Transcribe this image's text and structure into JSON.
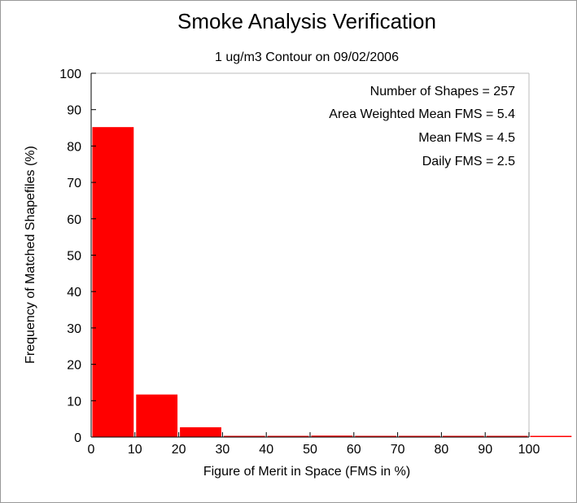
{
  "chart_data": {
    "type": "bar",
    "title": "Smoke Analysis Verification",
    "subtitle": "1 ug/m3 Contour on 09/02/2006",
    "xlabel": "Figure of Merit in Space (FMS in %)",
    "ylabel": "Frequency of Matched Shapefiles (%)",
    "xlim": [
      0,
      110
    ],
    "ylim": [
      0,
      100
    ],
    "xticks": [
      "0",
      "10",
      "20",
      "30",
      "40",
      "50",
      "60",
      "70",
      "80",
      "90",
      "100"
    ],
    "yticks": [
      "0",
      "10",
      "20",
      "30",
      "40",
      "50",
      "60",
      "70",
      "80",
      "90",
      "100"
    ],
    "bins": [
      {
        "x0": 0,
        "x1": 10,
        "value": 85.2
      },
      {
        "x0": 10,
        "x1": 20,
        "value": 11.7
      },
      {
        "x0": 20,
        "x1": 30,
        "value": 2.7
      },
      {
        "x0": 30,
        "x1": 40,
        "value": 0
      },
      {
        "x0": 40,
        "x1": 50,
        "value": 0
      },
      {
        "x0": 50,
        "x1": 60,
        "value": 0.4
      },
      {
        "x0": 60,
        "x1": 70,
        "value": 0
      },
      {
        "x0": 70,
        "x1": 80,
        "value": 0
      },
      {
        "x0": 80,
        "x1": 90,
        "value": 0
      },
      {
        "x0": 90,
        "x1": 100,
        "value": 0
      },
      {
        "x0": 100,
        "x1": 110,
        "value": 0
      }
    ],
    "annotations": [
      "Number of Shapes = 257",
      "Area Weighted Mean FMS = 5.4",
      "Mean FMS = 4.5",
      "Daily FMS = 2.5"
    ],
    "bar_color": "#ff0000",
    "grid": false
  }
}
